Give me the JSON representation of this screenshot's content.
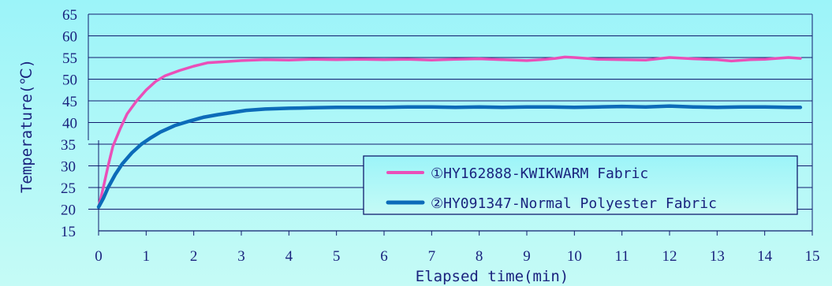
{
  "colors": {
    "background_top": "#9cf4f9",
    "background_bottom": "#c5fbf6",
    "grid": "#111c6e",
    "series_1": "#ea4fb8",
    "series_2": "#0c6bb9",
    "text": "#1a237e"
  },
  "chart_data": {
    "type": "line",
    "xlabel": "Elapsed time(min)",
    "ylabel": "Temperature(℃)",
    "xlim": [
      0,
      15
    ],
    "ylim": [
      15,
      65
    ],
    "x_ticks": [
      0,
      1,
      2,
      3,
      4,
      5,
      6,
      7,
      8,
      9,
      10,
      11,
      12,
      13,
      14,
      15
    ],
    "y_ticks": [
      15,
      20,
      25,
      30,
      35,
      40,
      45,
      50,
      55,
      60,
      65
    ],
    "grid": "horizontal",
    "legend_position": "lower-right",
    "series": [
      {
        "name": "①HY162888-KWIKWARM Fabric",
        "x": [
          0,
          0.1,
          0.2,
          0.3,
          0.45,
          0.6,
          0.8,
          1.0,
          1.2,
          1.4,
          1.7,
          2.0,
          2.3,
          2.6,
          3.0,
          3.5,
          4,
          4.5,
          5,
          5.5,
          6,
          6.5,
          7,
          7.5,
          8,
          8.5,
          9,
          9.3,
          9.6,
          9.8,
          10,
          10.5,
          11,
          11.5,
          12,
          12.5,
          13,
          13.3,
          13.7,
          14,
          14.5,
          14.75
        ],
        "y": [
          20.5,
          25,
          30,
          34.5,
          38.5,
          42,
          45,
          47.5,
          49.5,
          50.8,
          52,
          53,
          53.8,
          54.0,
          54.3,
          54.5,
          54.4,
          54.6,
          54.5,
          54.6,
          54.5,
          54.6,
          54.4,
          54.6,
          54.7,
          54.5,
          54.3,
          54.5,
          54.8,
          55.1,
          55.0,
          54.6,
          54.5,
          54.4,
          55.0,
          54.7,
          54.5,
          54.2,
          54.5,
          54.6,
          55.0,
          54.8
        ]
      },
      {
        "name": "②HY091347-Normal Polyester Fabric",
        "x": [
          0,
          0.1,
          0.2,
          0.35,
          0.5,
          0.7,
          0.9,
          1.1,
          1.3,
          1.6,
          1.9,
          2.2,
          2.5,
          2.8,
          3.1,
          3.5,
          4,
          4.5,
          5,
          5.5,
          6,
          6.5,
          7,
          7.5,
          8,
          8.5,
          9,
          9.5,
          10,
          10.5,
          11,
          11.5,
          12,
          12.5,
          13,
          13.5,
          14,
          14.5,
          14.75
        ],
        "y": [
          20.5,
          22.5,
          25,
          28,
          30.5,
          33,
          35,
          36.5,
          37.8,
          39.3,
          40.3,
          41.2,
          41.8,
          42.3,
          42.8,
          43.1,
          43.3,
          43.4,
          43.5,
          43.5,
          43.5,
          43.6,
          43.6,
          43.5,
          43.6,
          43.5,
          43.6,
          43.6,
          43.5,
          43.6,
          43.7,
          43.6,
          43.8,
          43.6,
          43.5,
          43.6,
          43.6,
          43.5,
          43.5
        ]
      }
    ]
  }
}
